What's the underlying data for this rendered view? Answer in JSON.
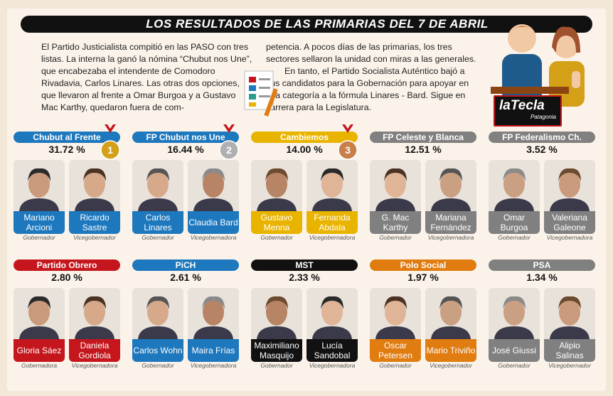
{
  "title": "LOS RESULTADOS DE LAS PRIMARIAS DEL 7 DE ABRIL",
  "intro_left": "El Partido Justicialista compitió en las PASO con tres listas. La interna la ganó la nómina “Chubut nos Une”, que encabezaba el intendente de Comodoro Rivadavia, Carlos Linares. Las otras dos opciones, que llevaron al frente a Omar Burgoa y a Gustavo Mac Karthy, quedaron fuera de com-",
  "intro_right_1": "petencia. A pocos días de las primarias, los tres sectores sellaron la unidad con miras a las generales.",
  "intro_right_2": "En tanto, el Partido Socialista Auténtico bajó a sus candidatos para la Gobernación para apoyar en esa categoría a la fórmula Linares - Bard. Sigue en carrera para la Legislatura.",
  "logo": {
    "main": "laTecla",
    "sub": "Patagonia"
  },
  "colors": {
    "blue": "#1e78be",
    "gold": "#e8b400",
    "red": "#c4161c",
    "gray": "#808080",
    "black": "#111111",
    "orange": "#e07c10"
  },
  "cards": [
    {
      "party": "Chubut al Frente",
      "pct": "31.72 %",
      "color": "blue",
      "medal": "1",
      "a": {
        "name": "Mariano Arcioni",
        "role": "Gobernador"
      },
      "b": {
        "name": "Ricardo Sastre",
        "role": "Vicegobernador"
      }
    },
    {
      "party": "FP Chubut nos Une",
      "pct": "16.44 %",
      "color": "blue",
      "medal": "2",
      "a": {
        "name": "Carlos Linares",
        "role": "Gobernador"
      },
      "b": {
        "name": "Claudia Bard",
        "role": "Vicegobernadora"
      }
    },
    {
      "party": "Cambiemos",
      "pct": "14.00 %",
      "color": "gold",
      "medal": "3",
      "a": {
        "name": "Gustavo Menna",
        "role": "Gobernador"
      },
      "b": {
        "name": "Fernanda Abdala",
        "role": "Vicegobernadora"
      }
    },
    {
      "party": "FP Celeste y Blanca",
      "pct": "12.51 %",
      "color": "gray",
      "medal": "",
      "a": {
        "name": "G. Mac Karthy",
        "role": "Gobernador"
      },
      "b": {
        "name": "Mariana Fernández",
        "role": "Vicegobernadora"
      }
    },
    {
      "party": "FP Federalismo Ch.",
      "pct": "3.52 %",
      "color": "gray",
      "medal": "",
      "a": {
        "name": "Omar Burgoa",
        "role": "Gobernador"
      },
      "b": {
        "name": "Valeriana Galeone",
        "role": "Vicegobernadora"
      }
    },
    {
      "party": "Partido Obrero",
      "pct": "2.80 %",
      "color": "red",
      "medal": "",
      "a": {
        "name": "Gloria Sáez",
        "role": "Gobernadora"
      },
      "b": {
        "name": "Daniela Gordiola",
        "role": "Vicegobernadora"
      }
    },
    {
      "party": "PiCH",
      "pct": "2.61 %",
      "color": "blue",
      "medal": "",
      "a": {
        "name": "Carlos Wohn",
        "role": "Gobernador"
      },
      "b": {
        "name": "Maira Frías",
        "role": "Vicegobernadora"
      }
    },
    {
      "party": "MST",
      "pct": "2.33 %",
      "color": "black",
      "medal": "",
      "a": {
        "name": "Maximiliano Masquijo",
        "role": "Gobernador"
      },
      "b": {
        "name": "Lucía Sandobal",
        "role": "Vicegobernadora"
      }
    },
    {
      "party": "Polo Social",
      "pct": "1.97 %",
      "color": "orange",
      "medal": "",
      "a": {
        "name": "Oscar Petersen",
        "role": "Gobernador"
      },
      "b": {
        "name": "Mario Triviño",
        "role": "Vicegobernador"
      }
    },
    {
      "party": "PSA",
      "pct": "1.34 %",
      "color": "gray",
      "medal": "",
      "a": {
        "name": "José Giussi",
        "role": "Gobernador"
      },
      "b": {
        "name": "Alipio Salinas",
        "role": "Vicegobernador"
      }
    }
  ]
}
